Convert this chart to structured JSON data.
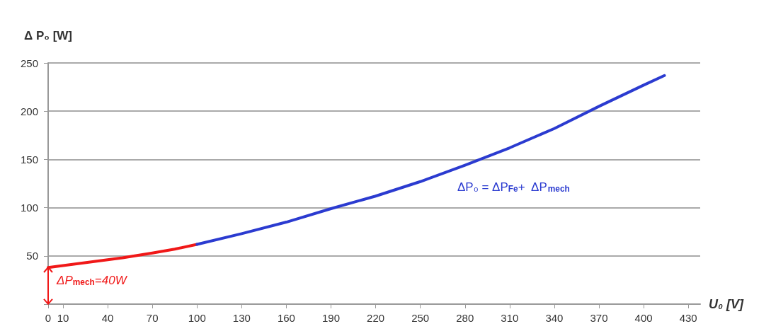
{
  "chart_data": {
    "type": "line",
    "xlabel": "U₀ [V]",
    "ylabel": "Δ P₀ [W]",
    "xlim": [
      0,
      438
    ],
    "xticks": [
      0,
      10,
      40,
      70,
      100,
      130,
      160,
      190,
      220,
      250,
      280,
      310,
      340,
      370,
      400,
      430
    ],
    "ylim": [
      0,
      250
    ],
    "yticks": [
      {
        "value": 0,
        "label": null
      },
      50,
      100,
      150,
      200,
      250
    ],
    "grid": "y",
    "marker": "none",
    "line_style": "solid",
    "series": [
      {
        "color": "#f01818",
        "x": [
          0,
          20,
          40,
          50,
          70,
          85,
          100
        ],
        "values": [
          38,
          42,
          46,
          48,
          53,
          57,
          62
        ]
      },
      {
        "color": "#2b3bd0",
        "x": [
          100,
          130,
          160,
          190,
          220,
          250,
          280,
          310,
          340,
          370,
          400,
          414
        ],
        "values": [
          62,
          73,
          85,
          99,
          112,
          127,
          144,
          162,
          182,
          205,
          227,
          237
        ]
      }
    ],
    "annotations": [
      "ΔP₀ = ΔP$_{Fe}$+  ΔP$_{mech}$",
      "ΔP$_{mech}$=40W"
    ]
  }
}
